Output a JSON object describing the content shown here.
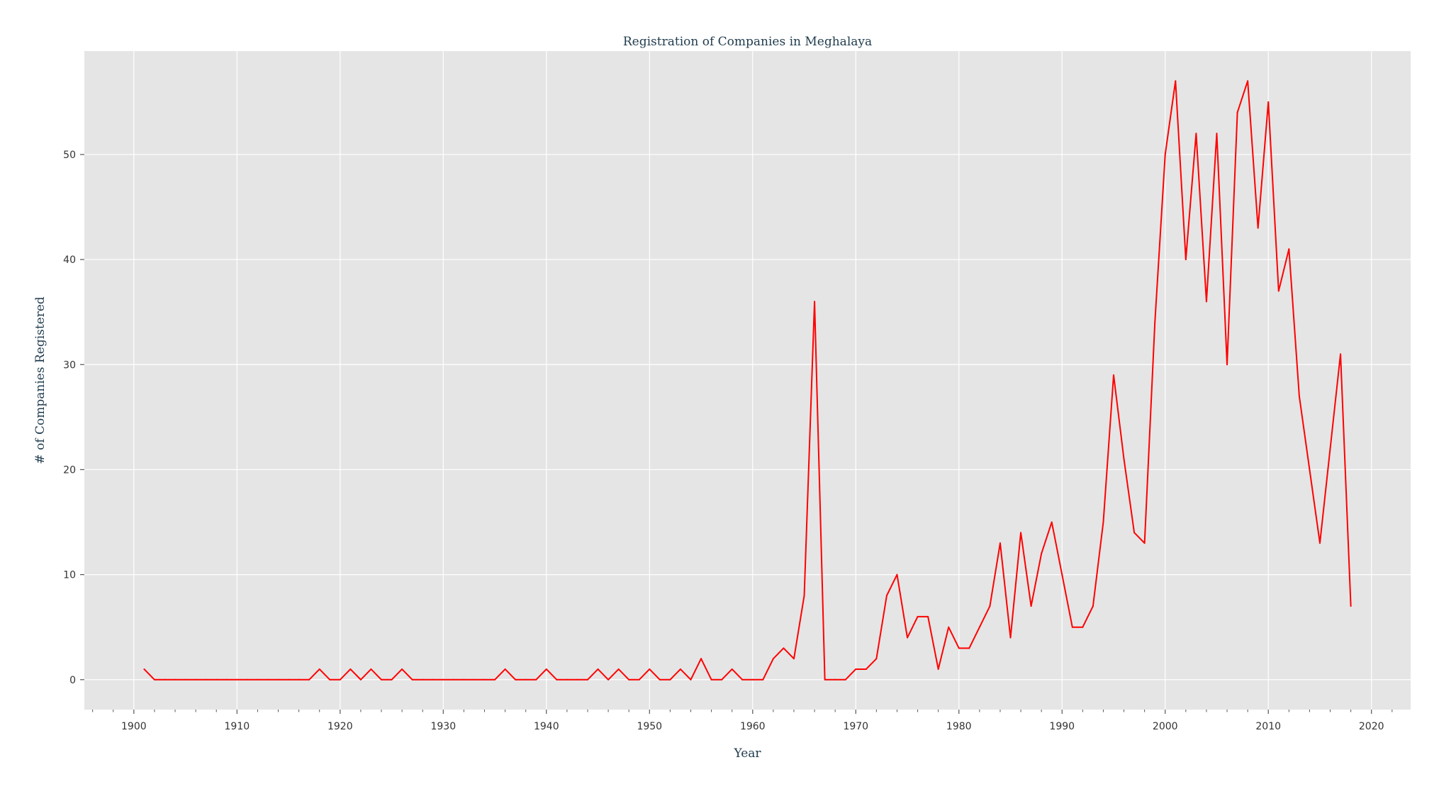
{
  "chart_data": {
    "type": "line",
    "title": "Registration of Companies in Meghalaya",
    "xlabel": "Year",
    "ylabel": "# of Companies Registered",
    "xlim": [
      1895.2,
      2023.8
    ],
    "ylim": [
      -2.85,
      59.85
    ],
    "xticks": [
      1900,
      1910,
      1920,
      1930,
      1940,
      1950,
      1960,
      1970,
      1980,
      1990,
      2000,
      2010,
      2020
    ],
    "yticks": [
      0,
      10,
      20,
      30,
      40,
      50
    ],
    "grid": true,
    "legend": "none",
    "colors": {
      "background": "#E5E5E5",
      "grid": "#FFFFFF",
      "line": "#FF0000",
      "text": "#333333",
      "title": "#1f3b4d"
    },
    "series": [
      {
        "x": [
          1901,
          1902,
          1903,
          1904,
          1905,
          1906,
          1907,
          1908,
          1909,
          1910,
          1911,
          1912,
          1913,
          1914,
          1915,
          1916,
          1917,
          1918,
          1919,
          1920,
          1921,
          1922,
          1923,
          1924,
          1925,
          1926,
          1927,
          1928,
          1929,
          1930,
          1931,
          1932,
          1933,
          1934,
          1935,
          1936,
          1937,
          1938,
          1939,
          1940,
          1941,
          1942,
          1943,
          1944,
          1945,
          1946,
          1947,
          1948,
          1949,
          1950,
          1951,
          1952,
          1953,
          1954,
          1955,
          1956,
          1957,
          1958,
          1959,
          1960,
          1961,
          1962,
          1963,
          1964,
          1965,
          1966,
          1967,
          1968,
          1969,
          1970,
          1971,
          1972,
          1973,
          1974,
          1975,
          1976,
          1977,
          1978,
          1979,
          1980,
          1981,
          1982,
          1983,
          1984,
          1985,
          1986,
          1987,
          1988,
          1989,
          1990,
          1991,
          1992,
          1993,
          1994,
          1995,
          1996,
          1997,
          1998,
          1999,
          2000,
          2001,
          2002,
          2003,
          2004,
          2005,
          2006,
          2007,
          2008,
          2009,
          2010,
          2011,
          2012,
          2013,
          2014,
          2015,
          2016,
          2017,
          2018
        ],
        "values": [
          1,
          0,
          0,
          0,
          0,
          0,
          0,
          0,
          0,
          0,
          0,
          0,
          0,
          0,
          0,
          0,
          0,
          1,
          0,
          0,
          1,
          0,
          1,
          0,
          0,
          1,
          0,
          0,
          0,
          0,
          0,
          0,
          0,
          0,
          0,
          1,
          0,
          0,
          0,
          1,
          0,
          0,
          0,
          0,
          1,
          0,
          1,
          0,
          0,
          1,
          0,
          0,
          1,
          0,
          2,
          0,
          0,
          1,
          0,
          0,
          0,
          2,
          3,
          2,
          8,
          36,
          0,
          0,
          0,
          1,
          1,
          2,
          8,
          10,
          4,
          6,
          6,
          1,
          5,
          3,
          3,
          5,
          7,
          13,
          4,
          14,
          7,
          12,
          15,
          10,
          5,
          5,
          7,
          15,
          29,
          21,
          14,
          13,
          34,
          50,
          57,
          40,
          52,
          36,
          52,
          30,
          54,
          57,
          43,
          55,
          37,
          41,
          27,
          20,
          13,
          22,
          31,
          7
        ]
      }
    ]
  }
}
